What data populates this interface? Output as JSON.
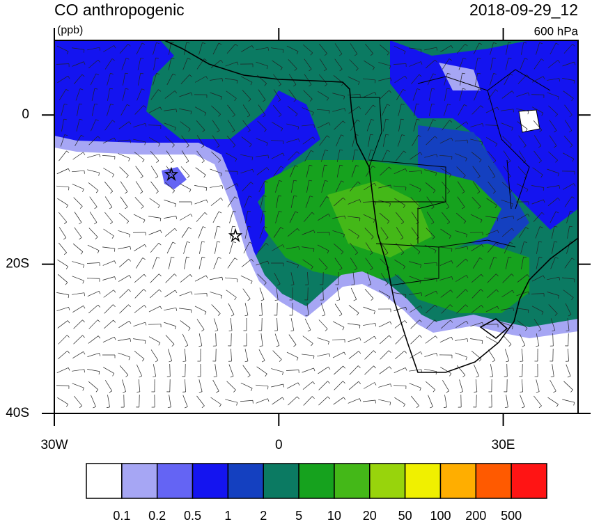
{
  "chart_data": {
    "type": "map",
    "title": "CO anthropogenic",
    "units": "(ppb)",
    "date": "2018-09-29_12",
    "level": "600 hPa",
    "xlim": [
      -30,
      40
    ],
    "ylim": [
      -40,
      10
    ],
    "xticks": [
      {
        "value": -30,
        "label": "30W"
      },
      0,
      {
        "value": 30,
        "label": "30E"
      }
    ],
    "yticks": [
      0,
      {
        "value": -20,
        "label": "20S"
      },
      {
        "value": -40,
        "label": "40S"
      }
    ],
    "colorbar": {
      "levels": [
        0.1,
        0.2,
        0.5,
        1,
        2,
        5,
        10,
        20,
        50,
        100,
        200,
        500
      ],
      "colors": [
        "#ffffff",
        "#a6a6f4",
        "#6464f4",
        "#1414f0",
        "#1440c0",
        "#0b7a62",
        "#16a21e",
        "#44b818",
        "#98d40c",
        "#f0f000",
        "#ffae00",
        "#ff5a00",
        "#ff1414"
      ]
    }
  }
}
